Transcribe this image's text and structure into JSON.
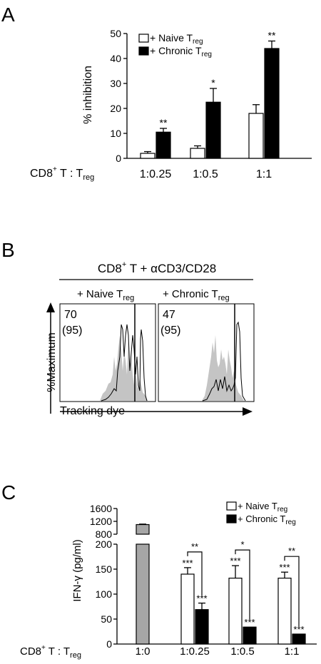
{
  "panels": {
    "A": {
      "letter": "A",
      "ylabel": "% inhibition",
      "row_label_main": "CD8",
      "row_label_sup": "+",
      "row_label_mid": " T : T",
      "row_label_sub": "reg",
      "legend": [
        {
          "prefix": "+ Naive T",
          "sub": "reg",
          "fill": "#ffffff"
        },
        {
          "prefix": "+ Chronic T",
          "sub": "reg",
          "fill": "#000000"
        }
      ]
    },
    "B": {
      "letter": "B",
      "header_main": "CD8",
      "header_sup": "+",
      "header_rest": " T + αCD3/CD28",
      "histograms": [
        {
          "label_prefix": "+ Naive T",
          "label_sub": "reg",
          "value": "70",
          "paren": "(95)"
        },
        {
          "label_prefix": "+ Chronic T",
          "label_sub": "reg",
          "value": "47",
          "paren": "(95)"
        }
      ],
      "y_axis_label": "%Maximum",
      "x_axis_label": "Tracking dye"
    },
    "C": {
      "letter": "C",
      "ylabel": "IFN-γ (pg/ml)",
      "row_label_main": "CD8",
      "row_label_sup": "+",
      "row_label_mid": " T : T",
      "row_label_sub": "reg",
      "legend": [
        {
          "prefix": "+ Naive T",
          "sub": "reg",
          "fill": "#ffffff"
        },
        {
          "prefix": "+ Chronic T",
          "sub": "reg",
          "fill": "#000000"
        }
      ]
    }
  },
  "chart_data": [
    {
      "panel": "A",
      "type": "bar",
      "ylabel": "% inhibition",
      "categories": [
        "1:0.25",
        "1:0.5",
        "1:1"
      ],
      "ylim": [
        0,
        50
      ],
      "yticks": [
        "0",
        "10",
        "20",
        "30",
        "40",
        "50"
      ],
      "series": [
        {
          "name": "+ Naive Treg",
          "color": "#ffffff",
          "values": [
            2,
            4,
            18
          ],
          "errors": [
            0.7,
            1,
            3.5
          ],
          "marks": [
            "",
            "",
            ""
          ]
        },
        {
          "name": "+ Chronic Treg",
          "color": "#000000",
          "values": [
            10.5,
            22.5,
            44
          ],
          "errors": [
            1.5,
            5.5,
            3
          ],
          "marks": [
            "**",
            "*",
            "**"
          ]
        }
      ]
    },
    {
      "panel": "C",
      "type": "bar",
      "ylabel": "IFN-γ (pg/ml)",
      "broken_axis": true,
      "categories": [
        "1:0",
        "1:0.25",
        "1:0.5",
        "1:1"
      ],
      "ylim_lower": [
        0,
        200
      ],
      "yticks_lower": [
        "0",
        "50",
        "100",
        "150",
        "200"
      ],
      "ylim_upper": [
        800,
        1600
      ],
      "yticks_upper": [
        "800",
        "1200",
        "1600"
      ],
      "control": {
        "category": "1:0",
        "value": 1100,
        "error": 15,
        "color": "#a6a6a6"
      },
      "series": [
        {
          "name": "+ Naive Treg",
          "color": "#ffffff",
          "values": [
            null,
            140,
            132,
            132
          ],
          "errors": [
            null,
            13,
            25,
            12
          ],
          "marks": [
            "",
            "***",
            "***",
            "***"
          ]
        },
        {
          "name": "+ Chronic Treg",
          "color": "#000000",
          "values": [
            null,
            69,
            34,
            20
          ],
          "errors": [
            null,
            13,
            0,
            0
          ],
          "marks": [
            "",
            "***",
            "***",
            "***"
          ]
        }
      ],
      "comparisons": [
        "",
        "**",
        "*",
        "**"
      ]
    }
  ]
}
